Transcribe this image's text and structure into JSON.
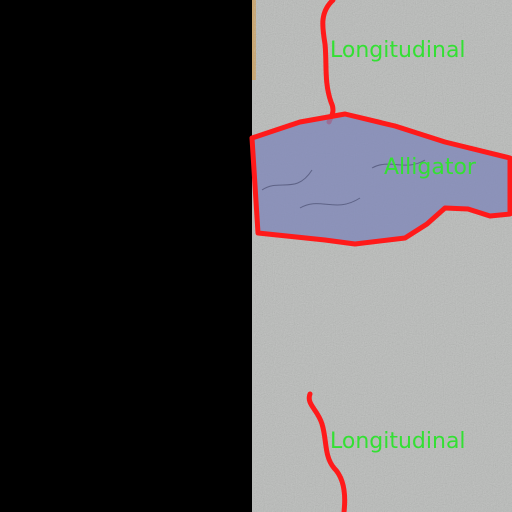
{
  "colors": {
    "background": "#000000",
    "road": "#b9bbb9",
    "road_edge": "#c9a672",
    "annotation_outline": "#ff1a1a",
    "alligator_fill": "#7f86b8",
    "label_text": "#33e033"
  },
  "annotations": [
    {
      "label": "Longitudinal"
    },
    {
      "label": "Alligator"
    },
    {
      "label": "Longitudinal"
    }
  ]
}
